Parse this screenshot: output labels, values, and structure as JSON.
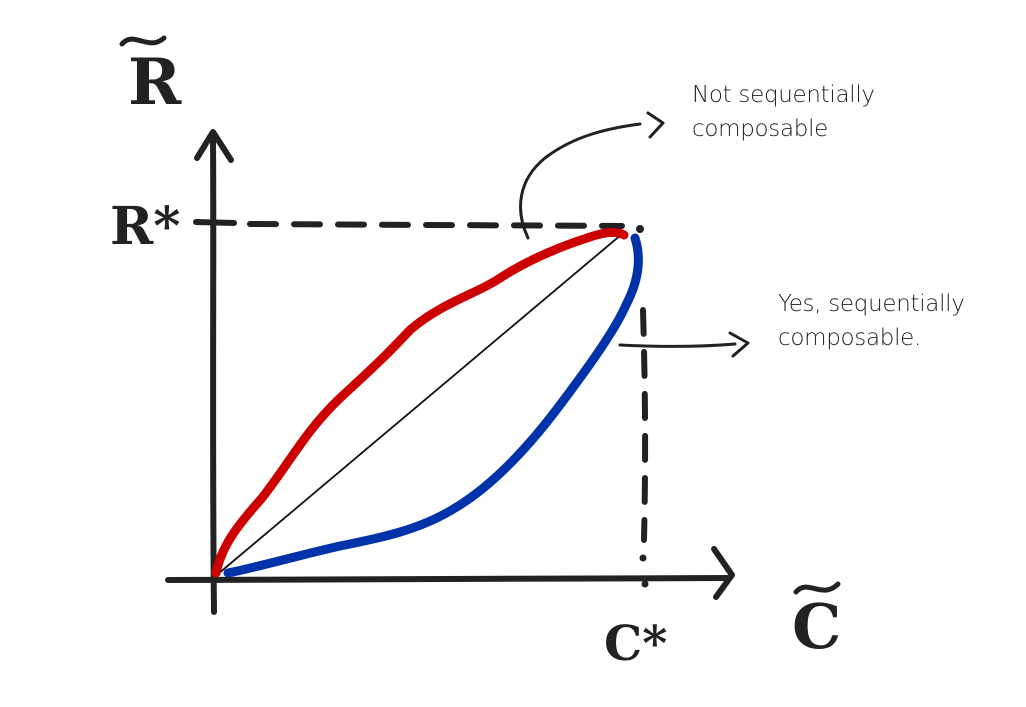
{
  "axes": {
    "y_symbol": "R",
    "x_symbol": "C",
    "y_optimum_symbol": "R*",
    "x_optimum_symbol": "C*"
  },
  "annotations": {
    "not_composable": {
      "line1": "Not sequentially",
      "line2": "composable"
    },
    "composable": {
      "line1": "Yes, sequentially",
      "line2": "composable."
    }
  },
  "colors": {
    "ink": "#222222",
    "not_composable_curve": "#cc0000",
    "composable_curve": "#0033aa",
    "diagonal": "#111111"
  }
}
